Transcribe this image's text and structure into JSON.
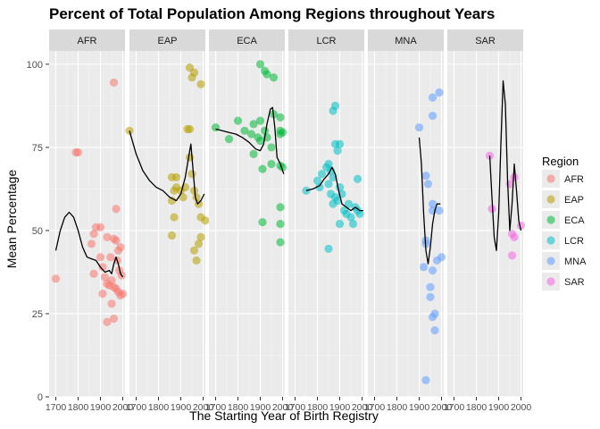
{
  "chart_data": {
    "type": "scatter",
    "title": "Percent of Total Population Among Regions throughout Years",
    "xlabel": "The Starting Year of Birth Registry",
    "ylabel": "Mean Percentage",
    "xlim": [
      1670,
      2010
    ],
    "ylim": [
      0,
      104
    ],
    "x_ticks": [
      1700,
      1800,
      1900,
      2000
    ],
    "x_tick_labels": [
      "1700",
      "1800",
      "1900",
      "2000"
    ],
    "y_ticks": [
      0,
      25,
      50,
      75,
      100
    ],
    "y_tick_labels": [
      "0",
      "25",
      "50",
      "75",
      "100"
    ],
    "grid": true,
    "legend_title": "Region",
    "legend_position": "right",
    "panels": [
      {
        "name": "AFR",
        "color": "#F8766D",
        "points": [
          [
            1700,
            35.5
          ],
          [
            1790,
            73.5
          ],
          [
            1800,
            73.5
          ],
          [
            1960,
            94.5
          ],
          [
            1880,
            51
          ],
          [
            1870,
            49
          ],
          [
            1900,
            51
          ],
          [
            1860,
            46
          ],
          [
            1870,
            37
          ],
          [
            1930,
            48
          ],
          [
            1945,
            42
          ],
          [
            1960,
            47.5
          ],
          [
            1970,
            47
          ],
          [
            1980,
            44
          ],
          [
            1990,
            45
          ],
          [
            1975,
            41
          ],
          [
            1985,
            38
          ],
          [
            1900,
            42
          ],
          [
            1910,
            39
          ],
          [
            1920,
            36
          ],
          [
            1930,
            34
          ],
          [
            1940,
            33.5
          ],
          [
            1950,
            35
          ],
          [
            1960,
            33
          ],
          [
            1970,
            32.5
          ],
          [
            1980,
            31.5
          ],
          [
            1990,
            30.5
          ],
          [
            1910,
            31
          ],
          [
            1950,
            28
          ],
          [
            1960,
            23.5
          ],
          [
            1930,
            22.5
          ],
          [
            1970,
            56.5
          ],
          [
            1995,
            36.5
          ],
          [
            2000,
            31
          ]
        ],
        "curve": [
          [
            1700,
            44
          ],
          [
            1720,
            50
          ],
          [
            1740,
            54
          ],
          [
            1760,
            55.5
          ],
          [
            1780,
            54
          ],
          [
            1800,
            50
          ],
          [
            1820,
            45
          ],
          [
            1840,
            42
          ],
          [
            1860,
            41.5
          ],
          [
            1880,
            41
          ],
          [
            1900,
            39
          ],
          [
            1920,
            37.5
          ],
          [
            1940,
            38
          ],
          [
            1950,
            37
          ],
          [
            1960,
            40
          ],
          [
            1970,
            42
          ],
          [
            1980,
            40
          ],
          [
            1990,
            37
          ],
          [
            2000,
            36
          ]
        ]
      },
      {
        "name": "EAP",
        "color": "#B79F00",
        "points": [
          [
            1670,
            80
          ],
          [
            1860,
            48.5
          ],
          [
            1870,
            54
          ],
          [
            1860,
            59
          ],
          [
            1870,
            62
          ],
          [
            1880,
            66
          ],
          [
            1860,
            66
          ],
          [
            1880,
            63
          ],
          [
            1900,
            62
          ],
          [
            1910,
            60
          ],
          [
            1920,
            63
          ],
          [
            1930,
            80.5
          ],
          [
            1940,
            80.5
          ],
          [
            1940,
            99
          ],
          [
            1950,
            96
          ],
          [
            1960,
            97.5
          ],
          [
            1990,
            94
          ],
          [
            1940,
            72
          ],
          [
            1950,
            67
          ],
          [
            1960,
            62
          ],
          [
            1970,
            60
          ],
          [
            1980,
            58
          ],
          [
            1990,
            54
          ],
          [
            2010,
            53
          ],
          [
            1960,
            44
          ],
          [
            1970,
            41
          ],
          [
            1980,
            46
          ],
          [
            1990,
            48
          ]
        ],
        "curve": [
          [
            1670,
            80
          ],
          [
            1700,
            73
          ],
          [
            1730,
            68
          ],
          [
            1760,
            65
          ],
          [
            1790,
            63
          ],
          [
            1820,
            62
          ],
          [
            1850,
            60
          ],
          [
            1880,
            59
          ],
          [
            1900,
            61
          ],
          [
            1920,
            66
          ],
          [
            1940,
            74
          ],
          [
            1945,
            76
          ],
          [
            1955,
            68
          ],
          [
            1965,
            60
          ],
          [
            1975,
            58
          ],
          [
            1990,
            59
          ],
          [
            2005,
            61
          ]
        ]
      },
      {
        "name": "ECA",
        "color": "#00BA38",
        "points": [
          [
            1700,
            81
          ],
          [
            1760,
            77.5
          ],
          [
            1800,
            83
          ],
          [
            1830,
            80
          ],
          [
            1860,
            79
          ],
          [
            1870,
            82
          ],
          [
            1890,
            78
          ],
          [
            1900,
            100
          ],
          [
            1920,
            98
          ],
          [
            1930,
            97
          ],
          [
            1960,
            96
          ],
          [
            1900,
            83
          ],
          [
            1920,
            80
          ],
          [
            1930,
            78
          ],
          [
            1960,
            85
          ],
          [
            1990,
            84
          ],
          [
            1990,
            79
          ],
          [
            1990,
            80
          ],
          [
            2000,
            79.5
          ],
          [
            1870,
            73
          ],
          [
            1910,
            68.5
          ],
          [
            1950,
            70
          ],
          [
            1990,
            69.5
          ],
          [
            2000,
            69
          ],
          [
            1900,
            77
          ],
          [
            1950,
            75
          ],
          [
            1910,
            52.5
          ],
          [
            1990,
            57
          ],
          [
            1990,
            52
          ],
          [
            1990,
            46.5
          ]
        ],
        "curve": [
          [
            1700,
            80.5
          ],
          [
            1730,
            80
          ],
          [
            1760,
            79.5
          ],
          [
            1790,
            79
          ],
          [
            1820,
            78
          ],
          [
            1850,
            76.5
          ],
          [
            1880,
            74.5
          ],
          [
            1900,
            74
          ],
          [
            1915,
            76
          ],
          [
            1930,
            82
          ],
          [
            1945,
            86.5
          ],
          [
            1955,
            87
          ],
          [
            1965,
            81
          ],
          [
            1975,
            72
          ],
          [
            1990,
            70
          ],
          [
            2005,
            67
          ]
        ]
      },
      {
        "name": "LCR",
        "color": "#00BFC4",
        "points": [
          [
            1750,
            62
          ],
          [
            1800,
            65
          ],
          [
            1810,
            63
          ],
          [
            1820,
            67
          ],
          [
            1840,
            69
          ],
          [
            1850,
            70
          ],
          [
            1860,
            68
          ],
          [
            1870,
            66
          ],
          [
            1880,
            60
          ],
          [
            1890,
            59
          ],
          [
            1880,
            76
          ],
          [
            1890,
            74
          ],
          [
            1900,
            76
          ],
          [
            1870,
            86
          ],
          [
            1880,
            87.5
          ],
          [
            1850,
            64
          ],
          [
            1860,
            61
          ],
          [
            1870,
            58
          ],
          [
            1900,
            63
          ],
          [
            1910,
            61
          ],
          [
            1920,
            56
          ],
          [
            1930,
            55
          ],
          [
            1950,
            54
          ],
          [
            1960,
            52
          ],
          [
            1970,
            57
          ],
          [
            1980,
            56
          ],
          [
            1990,
            55
          ],
          [
            1980,
            65.5
          ],
          [
            1850,
            44.5
          ],
          [
            1900,
            52
          ],
          [
            1940,
            58
          ]
        ],
        "curve": [
          [
            1750,
            62
          ],
          [
            1780,
            62.5
          ],
          [
            1810,
            63.5
          ],
          [
            1830,
            65.5
          ],
          [
            1850,
            67
          ],
          [
            1865,
            69
          ],
          [
            1880,
            67
          ],
          [
            1895,
            62
          ],
          [
            1910,
            58
          ],
          [
            1930,
            57
          ],
          [
            1950,
            56
          ],
          [
            1970,
            57
          ],
          [
            1990,
            56
          ],
          [
            2005,
            56
          ]
        ]
      },
      {
        "name": "MNA",
        "color": "#619CFF",
        "points": [
          [
            1900,
            81
          ],
          [
            1930,
            66.5
          ],
          [
            1960,
            84.5
          ],
          [
            1960,
            90
          ],
          [
            1990,
            91.5
          ],
          [
            1940,
            64
          ],
          [
            1960,
            58
          ],
          [
            1960,
            56
          ],
          [
            1990,
            56
          ],
          [
            1920,
            39
          ],
          [
            1930,
            47
          ],
          [
            1930,
            46
          ],
          [
            1960,
            38
          ],
          [
            1980,
            41
          ],
          [
            2000,
            42
          ],
          [
            1950,
            33
          ],
          [
            1950,
            30
          ],
          [
            1960,
            24
          ],
          [
            1970,
            25
          ],
          [
            1970,
            20
          ],
          [
            1930,
            5
          ]
        ],
        "curve": [
          [
            1900,
            78
          ],
          [
            1910,
            70
          ],
          [
            1920,
            55
          ],
          [
            1930,
            44
          ],
          [
            1940,
            40
          ],
          [
            1950,
            45
          ],
          [
            1960,
            52
          ],
          [
            1970,
            56
          ],
          [
            1980,
            58
          ],
          [
            1995,
            58
          ]
        ]
      },
      {
        "name": "SAR",
        "color": "#F564E3",
        "points": [
          [
            1860,
            72.5
          ],
          [
            1870,
            56.5
          ],
          [
            1950,
            64
          ],
          [
            1970,
            66
          ],
          [
            1960,
            49
          ],
          [
            1970,
            48
          ],
          [
            1960,
            42.5
          ],
          [
            2000,
            51.5
          ]
        ],
        "curve": [
          [
            1860,
            72.5
          ],
          [
            1870,
            60
          ],
          [
            1880,
            48
          ],
          [
            1890,
            44
          ],
          [
            1900,
            55
          ],
          [
            1910,
            76
          ],
          [
            1920,
            95
          ],
          [
            1930,
            88
          ],
          [
            1940,
            65
          ],
          [
            1950,
            50
          ],
          [
            1960,
            58
          ],
          [
            1970,
            70
          ],
          [
            1980,
            62
          ],
          [
            1990,
            53
          ],
          [
            2000,
            50
          ]
        ]
      }
    ]
  }
}
